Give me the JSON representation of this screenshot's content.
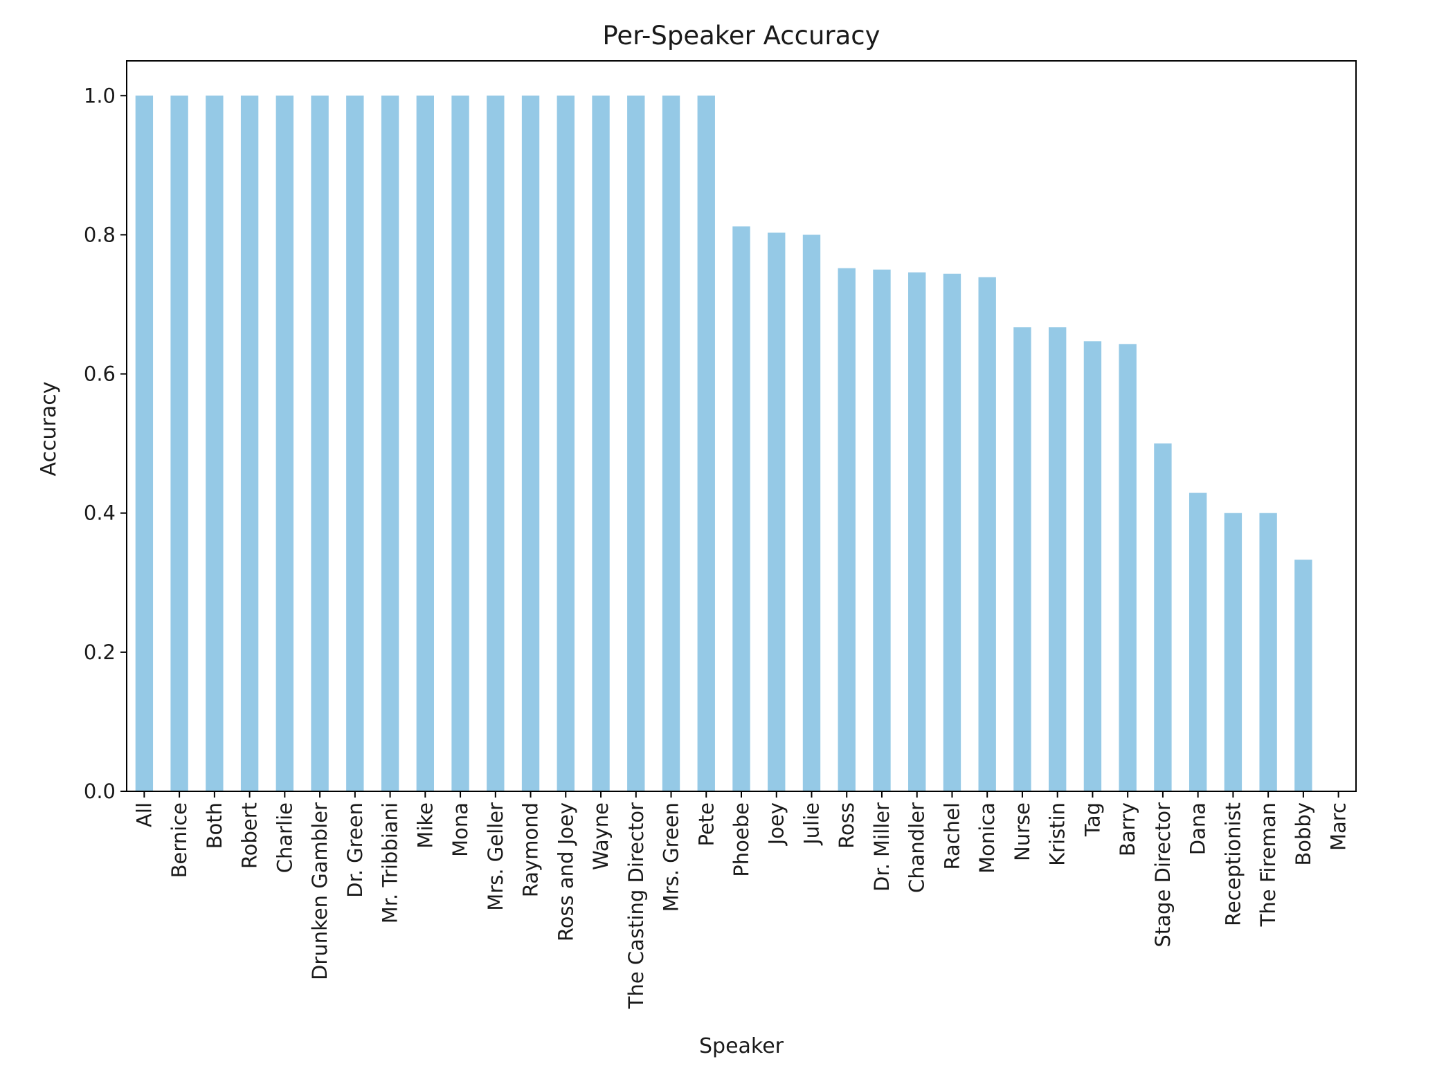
{
  "chart_data": {
    "type": "bar",
    "title": "Per-Speaker Accuracy",
    "xlabel": "Speaker",
    "ylabel": "Accuracy",
    "ylim": [
      0,
      1.05
    ],
    "yticks": [
      "0.0",
      "0.2",
      "0.4",
      "0.6",
      "0.8",
      "1.0"
    ],
    "bar_color": "#95c9e6",
    "grid": false,
    "categories": [
      "All",
      "Bernice",
      "Both",
      "Robert",
      "Charlie",
      "Drunken Gambler",
      "Dr. Green",
      "Mr. Tribbiani",
      "Mike",
      "Mona",
      "Mrs. Geller",
      "Raymond",
      "Ross and Joey",
      "Wayne",
      "The Casting Director",
      "Mrs. Green",
      "Pete",
      "Phoebe",
      "Joey",
      "Julie",
      "Ross",
      "Dr. Miller",
      "Chandler",
      "Rachel",
      "Monica",
      "Nurse",
      "Kristin",
      "Tag",
      "Barry",
      "Stage Director",
      "Dana",
      "Receptionist",
      "The Fireman",
      "Bobby",
      "Marc"
    ],
    "values": [
      1.0,
      1.0,
      1.0,
      1.0,
      1.0,
      1.0,
      1.0,
      1.0,
      1.0,
      1.0,
      1.0,
      1.0,
      1.0,
      1.0,
      1.0,
      1.0,
      1.0,
      0.812,
      0.803,
      0.8,
      0.752,
      0.75,
      0.746,
      0.744,
      0.739,
      0.667,
      0.667,
      0.647,
      0.643,
      0.5,
      0.429,
      0.4,
      0.4,
      0.333,
      0.0
    ]
  }
}
